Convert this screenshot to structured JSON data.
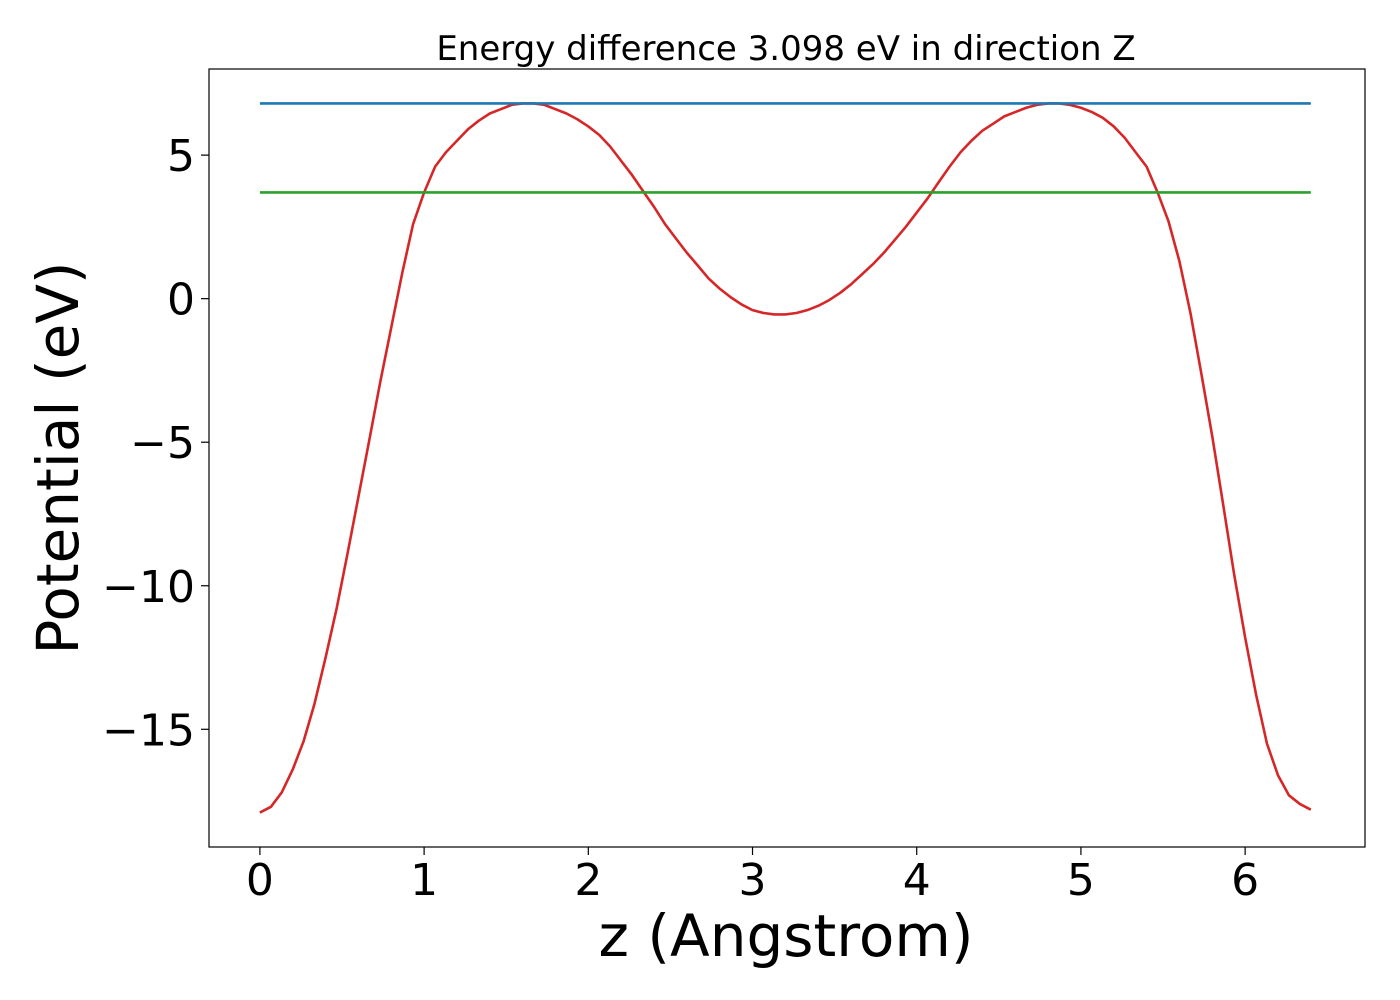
{
  "chart_data": {
    "type": "line",
    "title": "Energy difference 3.098 eV in direction Z",
    "xlabel": "z (Angstrom)",
    "ylabel": "Potential (eV)",
    "xlim": [
      -0.31,
      6.73
    ],
    "ylim": [
      -19.1,
      8.0
    ],
    "x_ticks": [
      0,
      1,
      2,
      3,
      4,
      5,
      6
    ],
    "x_tick_labels": [
      "0",
      "1",
      "2",
      "3",
      "4",
      "5",
      "6"
    ],
    "y_ticks": [
      5,
      0,
      -5,
      -10,
      -15
    ],
    "y_tick_labels": [
      "5",
      "0",
      "−5",
      "−10",
      "−15"
    ],
    "grid": false,
    "series": [
      {
        "color": "#d62728",
        "x": [
          0.0,
          0.067,
          0.133,
          0.2,
          0.267,
          0.333,
          0.4,
          0.467,
          0.533,
          0.6,
          0.667,
          0.733,
          0.8,
          0.867,
          0.933,
          1.0,
          1.067,
          1.133,
          1.2,
          1.267,
          1.333,
          1.4,
          1.467,
          1.533,
          1.6,
          1.667,
          1.733,
          1.8,
          1.867,
          1.933,
          2.0,
          2.067,
          2.133,
          2.2,
          2.267,
          2.333,
          2.4,
          2.467,
          2.533,
          2.6,
          2.667,
          2.733,
          2.8,
          2.867,
          2.933,
          3.0,
          3.067,
          3.133,
          3.2,
          3.267,
          3.333,
          3.4,
          3.467,
          3.533,
          3.6,
          3.667,
          3.733,
          3.8,
          3.867,
          3.933,
          4.0,
          4.067,
          4.133,
          4.2,
          4.267,
          4.333,
          4.4,
          4.467,
          4.533,
          4.6,
          4.667,
          4.733,
          4.8,
          4.867,
          4.933,
          5.0,
          5.067,
          5.133,
          5.2,
          5.267,
          5.333,
          5.4,
          5.467,
          5.533,
          5.6,
          5.667,
          5.733,
          5.8,
          5.867,
          5.933,
          6.0,
          6.067,
          6.133,
          6.2,
          6.267,
          6.333,
          6.4
        ],
        "values": [
          -17.9,
          -17.7,
          -17.2,
          -16.4,
          -15.4,
          -14.1,
          -12.5,
          -10.8,
          -8.9,
          -6.9,
          -4.9,
          -2.9,
          -1.0,
          0.9,
          2.6,
          3.7,
          4.6,
          5.1,
          5.5,
          5.9,
          6.2,
          6.45,
          6.6,
          6.75,
          6.8,
          6.8,
          6.75,
          6.6,
          6.45,
          6.25,
          6.0,
          5.7,
          5.3,
          4.8,
          4.3,
          3.75,
          3.2,
          2.6,
          2.1,
          1.6,
          1.15,
          0.7,
          0.35,
          0.05,
          -0.2,
          -0.4,
          -0.5,
          -0.55,
          -0.55,
          -0.5,
          -0.4,
          -0.25,
          -0.05,
          0.2,
          0.5,
          0.85,
          1.2,
          1.6,
          2.05,
          2.5,
          3.0,
          3.5,
          4.05,
          4.6,
          5.1,
          5.5,
          5.85,
          6.1,
          6.35,
          6.5,
          6.65,
          6.75,
          6.8,
          6.8,
          6.75,
          6.65,
          6.5,
          6.3,
          6.0,
          5.6,
          5.1,
          4.6,
          3.7,
          2.7,
          1.3,
          -0.5,
          -2.6,
          -4.8,
          -7.2,
          -9.6,
          -11.8,
          -13.8,
          -15.5,
          -16.6,
          -17.3,
          -17.6,
          -17.8
        ]
      },
      {
        "color": "#1f77b4",
        "x": [
          0.0,
          6.4
        ],
        "values": [
          6.8,
          6.8
        ]
      },
      {
        "color": "#2ca02c",
        "x": [
          0.0,
          6.4
        ],
        "values": [
          3.7,
          3.7
        ]
      }
    ]
  }
}
